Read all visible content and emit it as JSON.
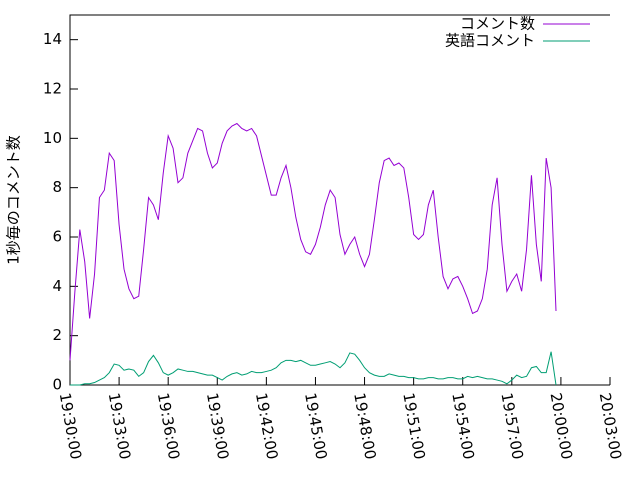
{
  "chart_data": {
    "type": "line",
    "ylabel": "1秒毎のコメント数",
    "x": [
      "19:30:00",
      "19:30:18",
      "19:30:36",
      "19:30:54",
      "19:31:12",
      "19:31:30",
      "19:31:48",
      "19:32:06",
      "19:32:24",
      "19:32:42",
      "19:33:00",
      "19:33:18",
      "19:33:36",
      "19:33:54",
      "19:34:12",
      "19:34:30",
      "19:34:48",
      "19:35:06",
      "19:35:24",
      "19:35:42",
      "19:36:00",
      "19:36:18",
      "19:36:36",
      "19:36:54",
      "19:37:12",
      "19:37:30",
      "19:37:48",
      "19:38:06",
      "19:38:24",
      "19:38:42",
      "19:39:00",
      "19:39:18",
      "19:39:36",
      "19:39:54",
      "19:40:12",
      "19:40:30",
      "19:40:48",
      "19:41:06",
      "19:41:24",
      "19:41:42",
      "19:42:00",
      "19:42:18",
      "19:42:36",
      "19:42:54",
      "19:43:12",
      "19:43:30",
      "19:43:48",
      "19:44:06",
      "19:44:24",
      "19:44:42",
      "19:45:00",
      "19:45:18",
      "19:45:36",
      "19:45:54",
      "19:46:12",
      "19:46:30",
      "19:46:48",
      "19:47:06",
      "19:47:24",
      "19:47:42",
      "19:48:00",
      "19:48:18",
      "19:48:36",
      "19:48:54",
      "19:49:12",
      "19:49:30",
      "19:49:48",
      "19:50:06",
      "19:50:24",
      "19:50:42",
      "19:51:00",
      "19:51:18",
      "19:51:36",
      "19:51:54",
      "19:52:12",
      "19:52:30",
      "19:52:48",
      "19:53:06",
      "19:53:24",
      "19:53:42",
      "19:54:00",
      "19:54:18",
      "19:54:36",
      "19:54:54",
      "19:55:12",
      "19:55:30",
      "19:55:48",
      "19:56:06",
      "19:56:24",
      "19:56:42",
      "19:57:00",
      "19:57:18",
      "19:57:36",
      "19:57:54",
      "19:58:12",
      "19:58:30",
      "19:58:48",
      "19:59:06",
      "19:59:24",
      "19:59:42"
    ],
    "series": [
      {
        "name": "コメント数",
        "color": "#9400d3",
        "values": [
          1.0,
          3.8,
          6.3,
          5.0,
          2.7,
          4.5,
          7.6,
          7.9,
          9.4,
          9.1,
          6.5,
          4.7,
          3.9,
          3.5,
          3.6,
          5.5,
          7.6,
          7.3,
          6.7,
          8.6,
          10.1,
          9.6,
          8.2,
          8.4,
          9.4,
          9.9,
          10.4,
          10.3,
          9.4,
          8.8,
          9.0,
          9.8,
          10.3,
          10.5,
          10.6,
          10.4,
          10.3,
          10.4,
          10.1,
          9.3,
          8.5,
          7.7,
          7.7,
          8.4,
          8.9,
          8.0,
          6.8,
          5.9,
          5.4,
          5.3,
          5.7,
          6.4,
          7.3,
          7.9,
          7.6,
          6.1,
          5.3,
          5.7,
          6.0,
          5.3,
          4.8,
          5.3,
          6.7,
          8.2,
          9.1,
          9.2,
          8.9,
          9.0,
          8.8,
          7.6,
          6.1,
          5.9,
          6.1,
          7.3,
          7.9,
          6.0,
          4.4,
          3.9,
          4.3,
          4.4,
          4.0,
          3.5,
          2.9,
          3.0,
          3.5,
          4.7,
          7.3,
          8.4,
          5.7,
          3.8,
          4.2,
          4.5,
          3.8,
          5.5,
          8.5,
          5.7,
          4.2,
          9.2,
          8.0,
          3.0
        ]
      },
      {
        "name": "英語コメント",
        "color": "#009e73",
        "values": [
          0.0,
          0.0,
          0.0,
          0.05,
          0.05,
          0.1,
          0.2,
          0.3,
          0.5,
          0.85,
          0.8,
          0.6,
          0.65,
          0.6,
          0.35,
          0.5,
          0.95,
          1.2,
          0.9,
          0.5,
          0.4,
          0.5,
          0.65,
          0.6,
          0.55,
          0.55,
          0.5,
          0.45,
          0.4,
          0.4,
          0.3,
          0.2,
          0.35,
          0.45,
          0.5,
          0.4,
          0.45,
          0.55,
          0.5,
          0.5,
          0.55,
          0.6,
          0.7,
          0.9,
          1.0,
          1.0,
          0.95,
          1.0,
          0.9,
          0.8,
          0.8,
          0.85,
          0.9,
          0.95,
          0.85,
          0.7,
          0.9,
          1.3,
          1.25,
          1.0,
          0.7,
          0.5,
          0.4,
          0.35,
          0.35,
          0.45,
          0.4,
          0.35,
          0.35,
          0.3,
          0.3,
          0.25,
          0.25,
          0.3,
          0.3,
          0.25,
          0.25,
          0.3,
          0.3,
          0.25,
          0.25,
          0.35,
          0.3,
          0.35,
          0.3,
          0.25,
          0.25,
          0.2,
          0.15,
          0.05,
          0.2,
          0.4,
          0.3,
          0.35,
          0.7,
          0.75,
          0.5,
          0.5,
          1.35,
          0.0
        ]
      }
    ],
    "xlim": [
      "19:30:00",
      "20:03:00"
    ],
    "xticks": [
      "19:30:00",
      "19:33:00",
      "19:36:00",
      "19:39:00",
      "19:42:00",
      "19:45:00",
      "19:48:00",
      "19:51:00",
      "19:54:00",
      "19:57:00",
      "20:00:00",
      "20:03:00"
    ],
    "ylim": [
      0,
      15
    ],
    "yticks": [
      0,
      2,
      4,
      6,
      8,
      10,
      12,
      14
    ],
    "legend": "top-right"
  }
}
